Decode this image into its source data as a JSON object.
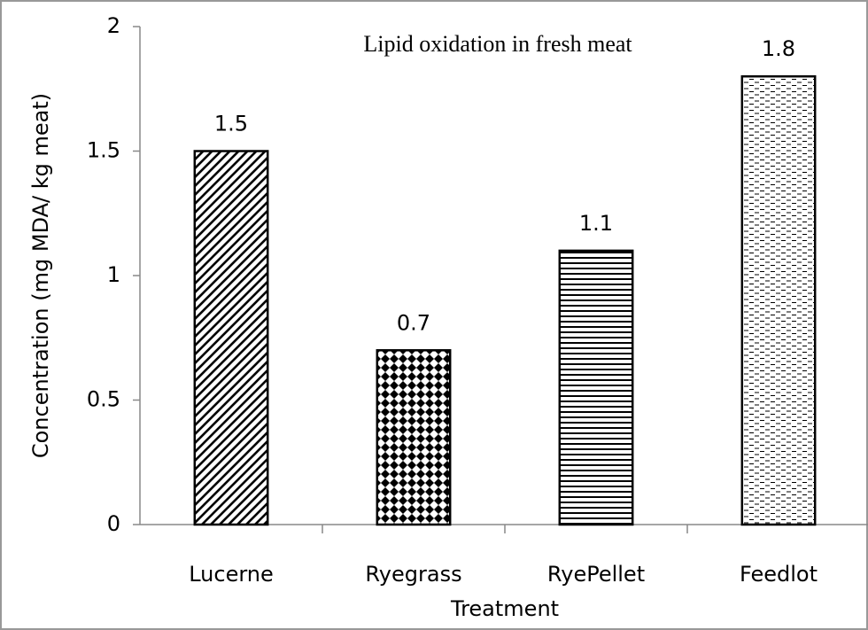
{
  "chart_data": {
    "type": "bar",
    "title": "Lipid oxidation in fresh meat",
    "x_label": "Treatment",
    "y_label": "Concentration (mg MDA/ kg meat)",
    "categories": [
      "Lucerne",
      "Ryegrass",
      "RyePellet",
      "Feedlot"
    ],
    "values": [
      1.5,
      0.7,
      1.1,
      1.8
    ],
    "patterns": [
      "diagonal",
      "checker",
      "horizontal",
      "dashes"
    ],
    "color": "#000000",
    "ylim": [
      0,
      2
    ],
    "yticks": [
      0,
      0.5,
      1,
      1.5,
      2
    ],
    "grid": false
  }
}
